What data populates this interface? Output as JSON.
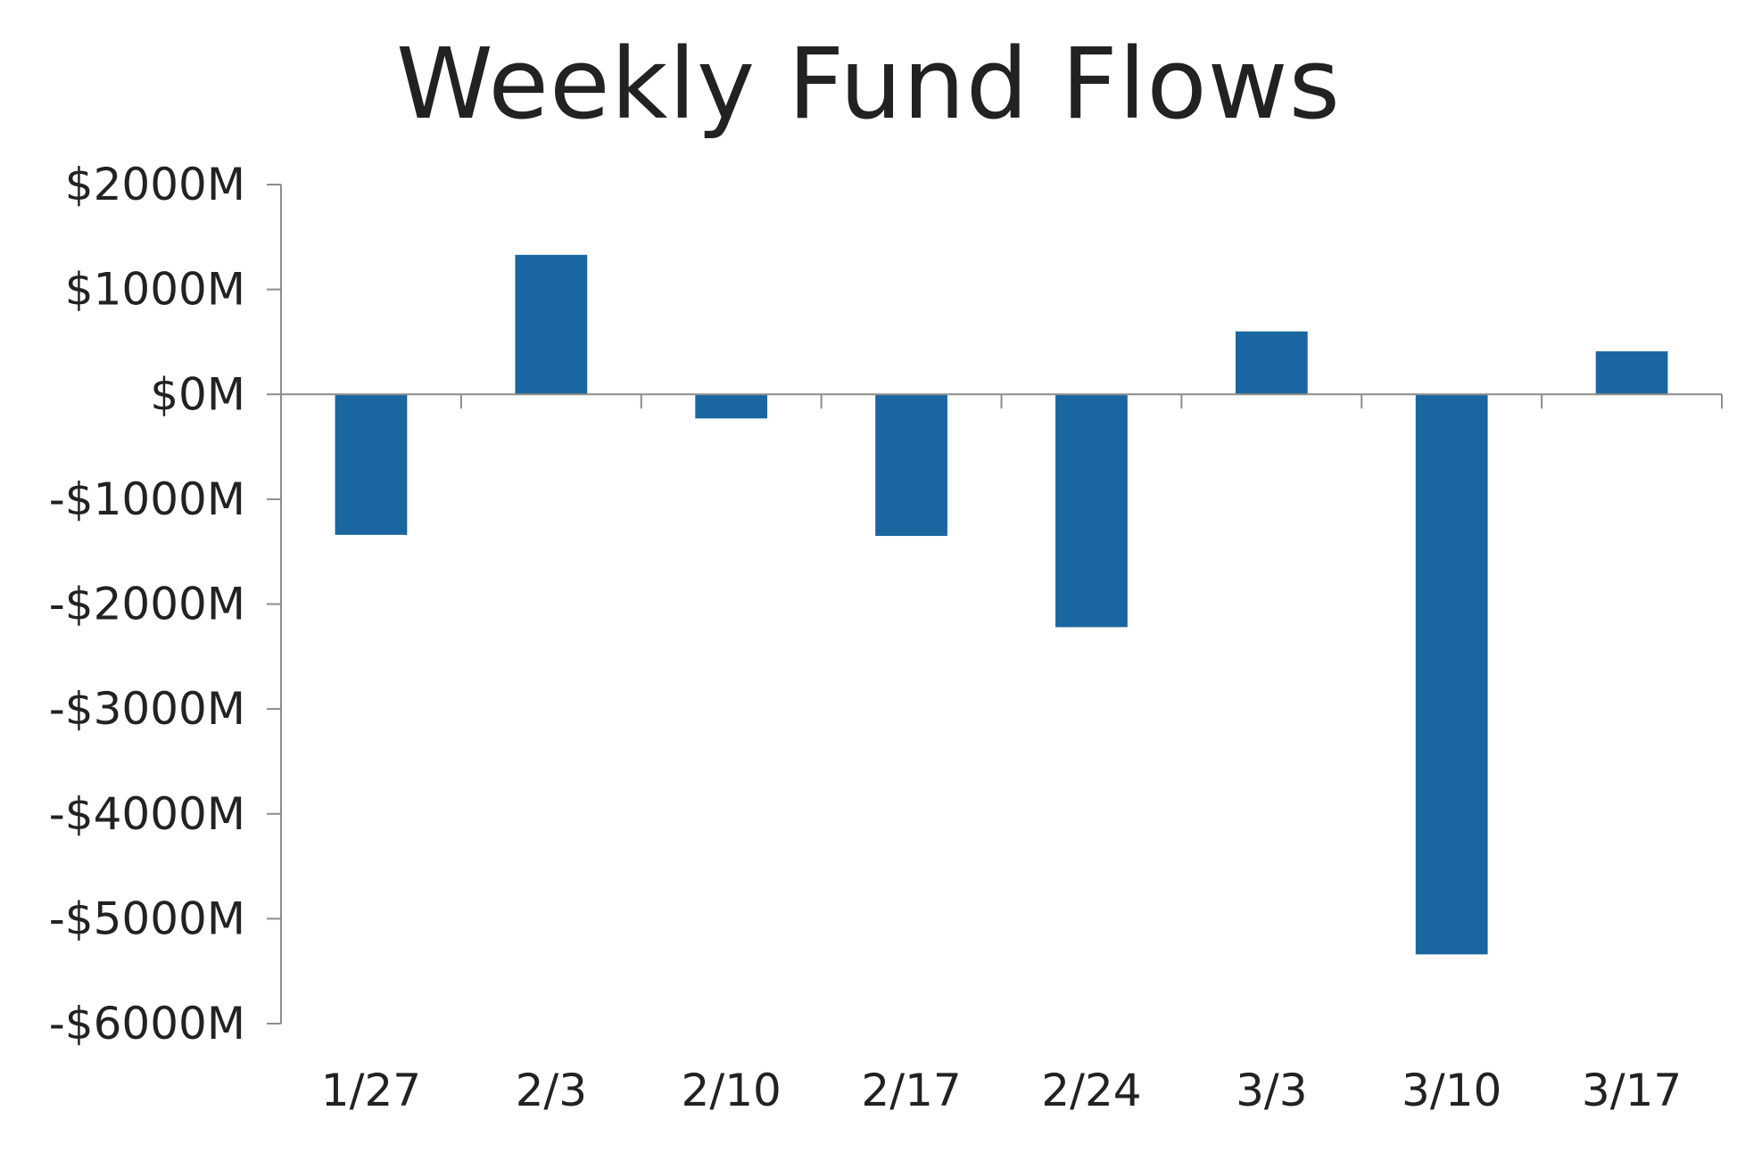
{
  "chart_data": {
    "type": "bar",
    "title": "Weekly Fund Flows",
    "xlabel": "",
    "ylabel": "",
    "categories": [
      "1/27",
      "2/3",
      "2/10",
      "2/17",
      "2/24",
      "3/3",
      "3/10",
      "3/17"
    ],
    "values": [
      -1340,
      1330,
      -230,
      -1350,
      -2220,
      600,
      -5340,
      410
    ],
    "ylim": [
      -6000,
      2000
    ],
    "yticks": [
      2000,
      1000,
      0,
      -1000,
      -2000,
      -3000,
      -4000,
      -5000,
      -6000
    ],
    "ytick_labels": [
      "$2000M",
      "$1000M",
      "$0M",
      "-$1000M",
      "-$2000M",
      "-$3000M",
      "-$4000M",
      "-$5000M",
      "-$6000M"
    ],
    "grid": false,
    "legend": "none",
    "colors": {
      "bar": "#1a66a0",
      "axis": "#8c8c8c",
      "text": "#222222"
    }
  }
}
